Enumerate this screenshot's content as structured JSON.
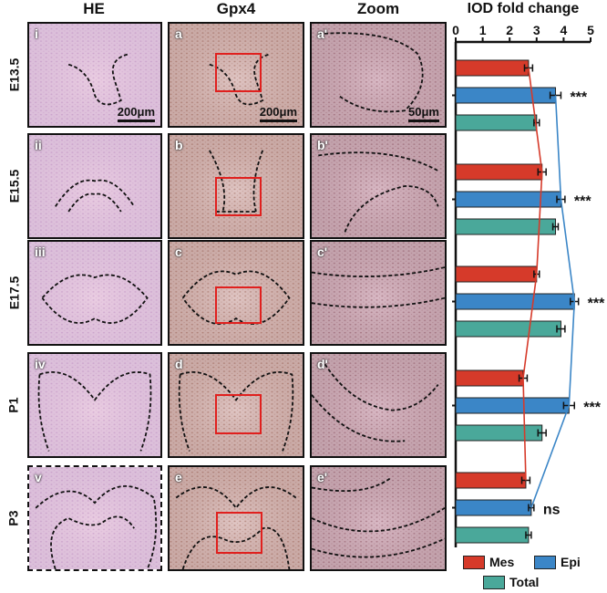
{
  "columns": [
    "HE",
    "Gpx4",
    "Zoom"
  ],
  "rows": [
    {
      "stage": "E13.5",
      "he_label": "i",
      "gpx_label": "a",
      "zoom_label": "a'"
    },
    {
      "stage": "E15.5",
      "he_label": "ii",
      "gpx_label": "b",
      "zoom_label": "b'"
    },
    {
      "stage": "E17.5",
      "he_label": "iii",
      "gpx_label": "c",
      "zoom_label": "c'"
    },
    {
      "stage": "P1",
      "he_label": "iv",
      "gpx_label": "d",
      "zoom_label": "d'"
    },
    {
      "stage": "P3",
      "he_label": "v",
      "gpx_label": "e",
      "zoom_label": "e'"
    }
  ],
  "scale_bars": {
    "he": "200μm",
    "gpx": "200μm",
    "zoom": "50μm"
  },
  "colors": {
    "he_bg": "#e6c2dc",
    "he_dark": "#b57fb8",
    "gpx_bg": "#d8b8b4",
    "gpx_dark": "#8a4a3a",
    "zoom_bg": "#cfa7b5",
    "zoom_dark": "#7a3a4a",
    "roi": "#e0201e",
    "mes": "#d63a2a",
    "epi": "#3b86c7",
    "total": "#4aa89a"
  },
  "chart_data": {
    "type": "bar",
    "orientation": "horizontal",
    "title": "IOD fold change",
    "xlim": [
      0,
      5
    ],
    "xticks": [
      0,
      1,
      2,
      3,
      4,
      5
    ],
    "categories": [
      "E13.5",
      "E15.5",
      "E17.5",
      "P1",
      "P3"
    ],
    "series": [
      {
        "name": "Mes",
        "values": [
          2.7,
          3.2,
          3.0,
          2.5,
          2.6
        ],
        "errors": [
          0.15,
          0.15,
          0.1,
          0.15,
          0.15
        ]
      },
      {
        "name": "Epi",
        "values": [
          3.7,
          3.9,
          4.4,
          4.2,
          2.8
        ],
        "errors": [
          0.2,
          0.15,
          0.15,
          0.2,
          0.1
        ]
      },
      {
        "name": "Total",
        "values": [
          3.0,
          3.7,
          3.9,
          3.2,
          2.7
        ],
        "errors": [
          0.1,
          0.1,
          0.15,
          0.15,
          0.1
        ]
      }
    ],
    "significance": [
      "***",
      "***",
      "***",
      "***",
      "ns"
    ],
    "legend": [
      "Mes",
      "Epi",
      "Total"
    ],
    "legend_position": "bottom"
  }
}
